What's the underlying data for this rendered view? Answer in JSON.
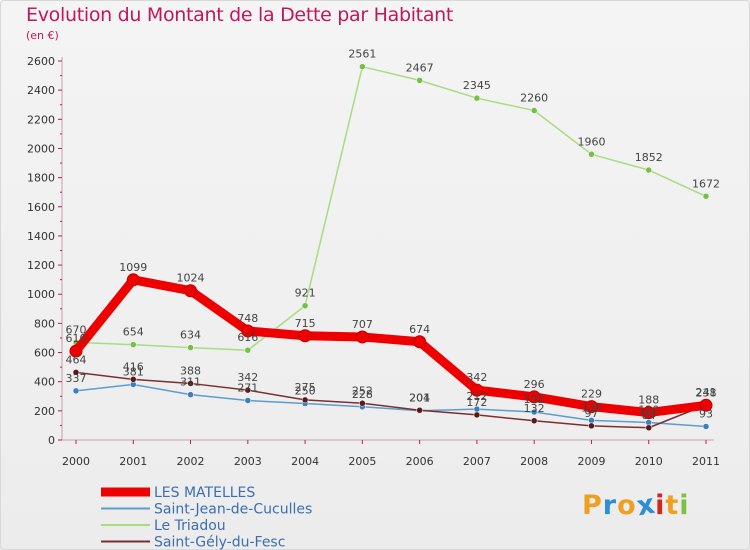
{
  "title": "Evolution du Montant de la Dette par Habitant",
  "subtitle": "(en €)",
  "logo": {
    "text": "Proxiti",
    "letter_colors": [
      "#f0a020",
      "#2a8fd6",
      "#f0a020",
      "#2a8fd6",
      "#d6261c",
      "#f0a020",
      "#7cc242"
    ]
  },
  "chart_data": {
    "type": "line",
    "x": [
      "2000",
      "2001",
      "2002",
      "2003",
      "2004",
      "2005",
      "2006",
      "2007",
      "2008",
      "2009",
      "2010",
      "2011"
    ],
    "ylim": [
      0,
      2600
    ],
    "yticks": [
      0,
      200,
      400,
      600,
      800,
      1000,
      1200,
      1400,
      1600,
      1800,
      2000,
      2200,
      2400,
      2600
    ],
    "grid": false,
    "legend_position": "bottom-left",
    "series": [
      {
        "name": "Saint-Jean-de-Cuculles",
        "color": "#5e9ccd",
        "point_color": "#3a7fc0",
        "width": 1.5,
        "values": [
          337,
          381,
          311,
          271,
          250,
          228,
          201,
          212,
          192,
          135,
          120,
          93
        ],
        "labels": [
          "337",
          "381",
          "311",
          "271",
          "250",
          "228",
          "201",
          "212",
          "192",
          "135",
          "120",
          "93"
        ]
      },
      {
        "name": "Le Triadou",
        "color": "#a8dc80",
        "point_color": "#74c043",
        "width": 1.5,
        "values": [
          670,
          654,
          634,
          616,
          921,
          2561,
          2467,
          2345,
          2260,
          1960,
          1852,
          1672
        ],
        "labels": [
          "670",
          "654",
          "634",
          "616",
          "921",
          "2561",
          "2467",
          "2345",
          "2260",
          "1960",
          "1852",
          "1672"
        ]
      },
      {
        "name": "Saint-Gély-du-Fesc",
        "color": "#7a3030",
        "point_color": "#5a1a1a",
        "width": 1.5,
        "values": [
          464,
          416,
          388,
          342,
          275,
          252,
          204,
          172,
          132,
          97,
          84,
          241
        ],
        "labels": [
          "464",
          "416",
          "388",
          "342",
          "275",
          "252",
          "204",
          "172",
          "132",
          "97",
          "84",
          "241"
        ]
      },
      {
        "name": "LES MATELLES",
        "color": "#ee0000",
        "point_color": "#ee0000",
        "width": 9,
        "values": [
          610,
          1099,
          1024,
          748,
          715,
          707,
          674,
          342,
          296,
          229,
          188,
          238
        ],
        "labels": [
          "610",
          "1099",
          "1024",
          "748",
          "715",
          "707",
          "674",
          "342",
          "296",
          "229",
          "188",
          "238"
        ]
      }
    ],
    "legend": [
      {
        "name": "LES MATELLES",
        "color": "#ee0000"
      },
      {
        "name": "Saint-Jean-de-Cuculles",
        "color": "#5e9ccd"
      },
      {
        "name": "Le Triadou",
        "color": "#a8dc80"
      },
      {
        "name": "Saint-Gély-du-Fesc",
        "color": "#7a3030"
      }
    ]
  }
}
